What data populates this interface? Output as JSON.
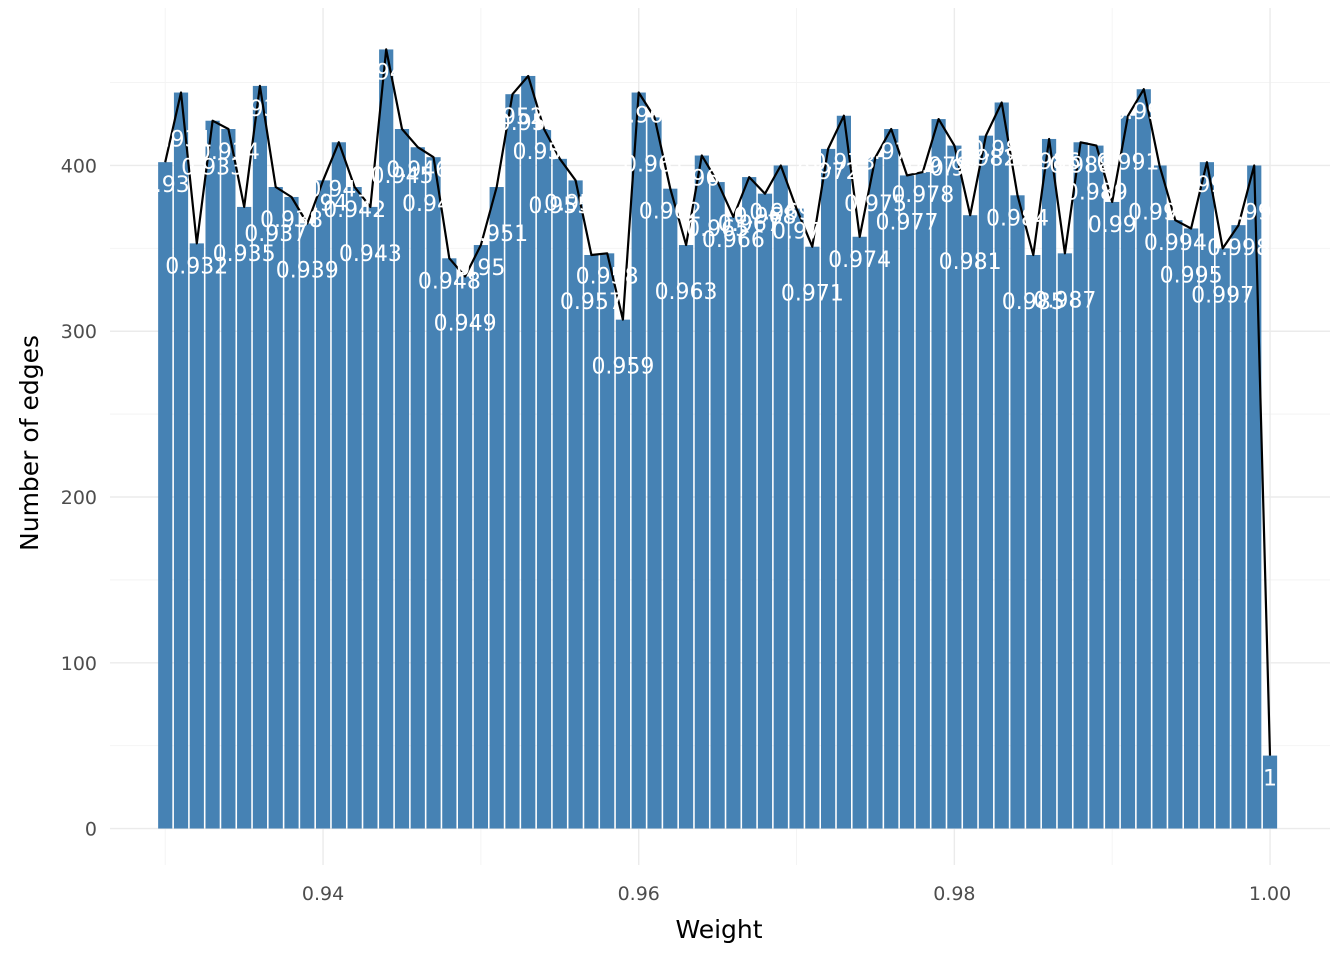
{
  "chart_data": {
    "type": "bar",
    "xlabel": "Weight",
    "ylabel": "Number of edges",
    "x_ticks": [
      "0.94",
      "0.96",
      "0.98",
      "1.00"
    ],
    "x_tick_values": [
      0.94,
      0.96,
      0.98,
      1.0
    ],
    "y_ticks": [
      "0",
      "100",
      "200",
      "300",
      "400"
    ],
    "y_tick_values": [
      0,
      100,
      200,
      300,
      400
    ],
    "xlim": [
      0.9265,
      1.0038
    ],
    "ylim": [
      -22,
      495
    ],
    "grid": true,
    "bar_color": "#4682b4",
    "line_color": "#000000",
    "label_color": "#ffffff",
    "overlay": "line through bar tops",
    "x": [
      0.93,
      0.931,
      0.932,
      0.933,
      0.934,
      0.935,
      0.936,
      0.937,
      0.938,
      0.939,
      0.94,
      0.941,
      0.942,
      0.943,
      0.944,
      0.945,
      0.946,
      0.947,
      0.948,
      0.949,
      0.95,
      0.951,
      0.952,
      0.953,
      0.954,
      0.955,
      0.956,
      0.957,
      0.958,
      0.959,
      0.96,
      0.961,
      0.962,
      0.963,
      0.964,
      0.965,
      0.966,
      0.967,
      0.968,
      0.969,
      0.97,
      0.971,
      0.972,
      0.973,
      0.974,
      0.975,
      0.976,
      0.977,
      0.978,
      0.979,
      0.98,
      0.981,
      0.982,
      0.983,
      0.984,
      0.985,
      0.986,
      0.987,
      0.988,
      0.989,
      0.99,
      0.991,
      0.992,
      0.993,
      0.994,
      0.995,
      0.996,
      0.997,
      0.998,
      0.999,
      1.0
    ],
    "values": [
      402,
      444,
      353,
      427,
      422,
      375,
      448,
      387,
      381,
      365,
      391,
      414,
      387,
      375,
      470,
      422,
      411,
      405,
      344,
      333,
      352,
      387,
      443,
      454,
      422,
      404,
      391,
      346,
      347,
      307,
      444,
      429,
      386,
      352,
      406,
      390,
      369,
      393,
      383,
      400,
      374,
      351,
      410,
      430,
      357,
      405,
      422,
      394,
      396,
      428,
      412,
      370,
      418,
      438,
      382,
      346,
      416,
      347,
      414,
      412,
      378,
      430,
      446,
      400,
      367,
      362,
      402,
      350,
      364,
      400,
      44
    ],
    "labels": [
      "0.93",
      "0.931",
      "0.932",
      "0.933",
      "0.934",
      "0.935",
      "0.936",
      "0.937",
      "0.938",
      "0.939",
      "0.94",
      "0.941",
      "0.942",
      "0.943",
      "0.944",
      "0.945",
      "0.946",
      "0.947",
      "0.948",
      "0.949",
      "0.95",
      "0.951",
      "0.952",
      "0.953",
      "0.954",
      "0.955",
      "0.956",
      "0.957",
      "0.958",
      "0.959",
      "0.96",
      "0.961",
      "0.962",
      "0.963",
      "0.964",
      "0.965",
      "0.966",
      "0.967",
      "0.968",
      "0.969",
      "0.97",
      "0.971",
      "0.972",
      "0.973",
      "0.974",
      "0.975",
      "0.976",
      "0.977",
      "0.978",
      "0.979",
      "0.98",
      "0.981",
      "0.982",
      "0.983",
      "0.984",
      "0.985",
      "0.986",
      "0.987",
      "0.988",
      "0.989",
      "0.99",
      "0.991",
      "0.992",
      "0.993",
      "0.994",
      "0.995",
      "0.996",
      "0.997",
      "0.998",
      "0.999",
      "1"
    ]
  }
}
